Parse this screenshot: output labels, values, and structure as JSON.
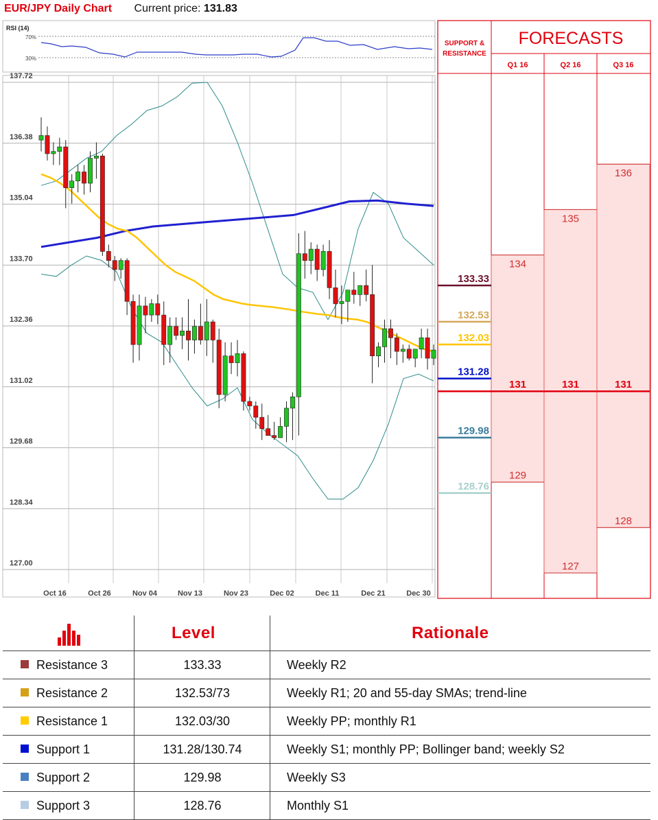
{
  "header": {
    "title": "EUR/JPY Daily Chart",
    "price_label": "Current price:",
    "price_value": "131.83"
  },
  "rsi": {
    "label": "RSI (14)",
    "levels": [
      "70%",
      "30%"
    ]
  },
  "chart_data": {
    "type": "candlestick",
    "title": "EUR/JPY Daily Chart",
    "y_ticks": [
      137.72,
      136.38,
      135.04,
      133.7,
      132.36,
      131.02,
      129.68,
      128.34,
      127.0
    ],
    "ylim": [
      127.0,
      137.72
    ],
    "x_ticks": [
      "Oct 16",
      "Oct 26",
      "Nov 04",
      "Nov 13",
      "Nov 23",
      "Dec 02",
      "Dec 11",
      "Dec 21",
      "Dec 30"
    ],
    "grid": true,
    "candles": [
      {
        "o": 136.45,
        "h": 136.95,
        "l": 136.2,
        "c": 136.55
      },
      {
        "o": 136.55,
        "h": 136.75,
        "l": 136.0,
        "c": 136.15
      },
      {
        "o": 136.15,
        "h": 136.4,
        "l": 135.9,
        "c": 136.2
      },
      {
        "o": 136.2,
        "h": 136.5,
        "l": 135.9,
        "c": 136.3
      },
      {
        "o": 136.3,
        "h": 136.45,
        "l": 134.95,
        "c": 135.4
      },
      {
        "o": 135.4,
        "h": 135.7,
        "l": 135.05,
        "c": 135.55
      },
      {
        "o": 135.55,
        "h": 135.9,
        "l": 135.3,
        "c": 135.75
      },
      {
        "o": 135.75,
        "h": 135.9,
        "l": 135.25,
        "c": 135.5
      },
      {
        "o": 135.5,
        "h": 136.2,
        "l": 135.3,
        "c": 136.05
      },
      {
        "o": 136.05,
        "h": 136.4,
        "l": 135.6,
        "c": 136.1
      },
      {
        "o": 136.1,
        "h": 136.15,
        "l": 133.9,
        "c": 134.0
      },
      {
        "o": 134.0,
        "h": 134.15,
        "l": 133.65,
        "c": 133.8
      },
      {
        "o": 133.8,
        "h": 133.9,
        "l": 133.35,
        "c": 133.6
      },
      {
        "o": 133.6,
        "h": 133.85,
        "l": 133.4,
        "c": 133.8
      },
      {
        "o": 133.8,
        "h": 133.85,
        "l": 132.6,
        "c": 132.9
      },
      {
        "o": 132.9,
        "h": 133.05,
        "l": 131.55,
        "c": 131.95
      },
      {
        "o": 131.95,
        "h": 133.05,
        "l": 131.6,
        "c": 132.8
      },
      {
        "o": 132.8,
        "h": 133.0,
        "l": 132.2,
        "c": 132.6
      },
      {
        "o": 132.6,
        "h": 132.95,
        "l": 132.45,
        "c": 132.85
      },
      {
        "o": 132.85,
        "h": 133.05,
        "l": 132.4,
        "c": 132.6
      },
      {
        "o": 132.6,
        "h": 132.9,
        "l": 131.5,
        "c": 131.95
      },
      {
        "o": 131.95,
        "h": 132.55,
        "l": 131.55,
        "c": 132.35
      },
      {
        "o": 132.35,
        "h": 132.55,
        "l": 132.05,
        "c": 132.15
      },
      {
        "o": 132.15,
        "h": 132.55,
        "l": 131.85,
        "c": 132.25
      },
      {
        "o": 132.25,
        "h": 132.95,
        "l": 131.6,
        "c": 132.05
      },
      {
        "o": 132.05,
        "h": 132.5,
        "l": 131.75,
        "c": 132.35
      },
      {
        "o": 132.35,
        "h": 132.85,
        "l": 131.95,
        "c": 132.05
      },
      {
        "o": 132.05,
        "h": 132.95,
        "l": 131.7,
        "c": 132.45
      },
      {
        "o": 132.45,
        "h": 132.5,
        "l": 131.55,
        "c": 132.05
      },
      {
        "o": 132.05,
        "h": 132.3,
        "l": 130.55,
        "c": 130.85
      },
      {
        "o": 130.85,
        "h": 132.0,
        "l": 130.7,
        "c": 131.7
      },
      {
        "o": 131.7,
        "h": 132.0,
        "l": 131.3,
        "c": 131.55
      },
      {
        "o": 131.55,
        "h": 132.05,
        "l": 131.25,
        "c": 131.75
      },
      {
        "o": 131.75,
        "h": 131.8,
        "l": 130.5,
        "c": 130.7
      },
      {
        "o": 130.7,
        "h": 130.8,
        "l": 130.5,
        "c": 130.6
      },
      {
        "o": 130.6,
        "h": 130.7,
        "l": 130.1,
        "c": 130.35
      },
      {
        "o": 130.35,
        "h": 130.65,
        "l": 129.85,
        "c": 130.1
      },
      {
        "o": 130.1,
        "h": 130.4,
        "l": 129.95,
        "c": 129.95
      },
      {
        "o": 129.95,
        "h": 130.25,
        "l": 129.85,
        "c": 129.9
      },
      {
        "o": 129.9,
        "h": 130.35,
        "l": 129.9,
        "c": 130.15
      },
      {
        "o": 130.15,
        "h": 130.7,
        "l": 129.8,
        "c": 130.55
      },
      {
        "o": 130.55,
        "h": 130.9,
        "l": 129.85,
        "c": 130.8
      },
      {
        "o": 130.8,
        "h": 134.4,
        "l": 129.95,
        "c": 133.95
      },
      {
        "o": 133.95,
        "h": 134.45,
        "l": 133.4,
        "c": 133.8
      },
      {
        "o": 133.8,
        "h": 134.2,
        "l": 133.5,
        "c": 134.05
      },
      {
        "o": 134.05,
        "h": 134.15,
        "l": 133.35,
        "c": 133.6
      },
      {
        "o": 133.6,
        "h": 134.15,
        "l": 133.45,
        "c": 134.0
      },
      {
        "o": 134.0,
        "h": 134.25,
        "l": 132.95,
        "c": 133.2
      },
      {
        "o": 133.2,
        "h": 133.6,
        "l": 132.55,
        "c": 132.85
      },
      {
        "o": 132.85,
        "h": 133.25,
        "l": 132.4,
        "c": 132.9
      },
      {
        "o": 132.9,
        "h": 133.15,
        "l": 132.45,
        "c": 133.15
      },
      {
        "o": 133.15,
        "h": 133.55,
        "l": 132.85,
        "c": 133.05
      },
      {
        "o": 133.05,
        "h": 133.25,
        "l": 132.8,
        "c": 133.25
      },
      {
        "o": 133.25,
        "h": 133.6,
        "l": 132.9,
        "c": 133.05
      },
      {
        "o": 133.05,
        "h": 133.7,
        "l": 131.1,
        "c": 131.7
      },
      {
        "o": 131.7,
        "h": 132.0,
        "l": 131.45,
        "c": 131.9
      },
      {
        "o": 131.9,
        "h": 132.5,
        "l": 131.55,
        "c": 132.3
      },
      {
        "o": 132.3,
        "h": 132.5,
        "l": 131.65,
        "c": 132.1
      },
      {
        "o": 132.1,
        "h": 132.2,
        "l": 131.5,
        "c": 131.8
      },
      {
        "o": 131.8,
        "h": 131.95,
        "l": 131.55,
        "c": 131.85
      },
      {
        "o": 131.85,
        "h": 131.95,
        "l": 131.6,
        "c": 131.65
      },
      {
        "o": 131.65,
        "h": 131.85,
        "l": 131.45,
        "c": 131.85
      },
      {
        "o": 131.85,
        "h": 132.3,
        "l": 131.65,
        "c": 132.1
      },
      {
        "o": 132.1,
        "h": 132.3,
        "l": 131.4,
        "c": 131.65
      },
      {
        "o": 131.65,
        "h": 131.95,
        "l": 131.5,
        "c": 131.83
      }
    ],
    "sma_yellow": [
      135.7,
      135.62,
      135.5,
      135.35,
      135.15,
      134.95,
      134.75,
      134.6,
      134.5,
      134.45,
      134.3,
      134.1,
      133.9,
      133.7,
      133.55,
      133.45,
      133.35,
      133.2,
      133.05,
      132.95,
      132.9,
      132.85,
      132.82,
      132.8,
      132.78,
      132.75,
      132.72,
      132.68,
      132.65,
      132.62,
      132.6,
      132.55,
      132.52,
      132.5,
      132.45,
      132.35,
      132.25,
      132.15,
      132.05,
      131.95,
      131.85,
      131.8
    ],
    "sma_blue": [
      134.1,
      134.2,
      134.3,
      134.45,
      134.55,
      134.6,
      134.65,
      134.7,
      134.75,
      134.8,
      134.95,
      135.1,
      135.12,
      135.05,
      135.0
    ],
    "bb_upper": [
      135.45,
      135.55,
      135.8,
      136.05,
      136.2,
      136.55,
      136.8,
      137.1,
      137.2,
      137.4,
      137.7,
      137.72,
      137.2,
      136.4,
      135.5,
      134.5,
      133.5,
      133.2,
      133.1,
      132.5,
      133.1,
      134.5,
      135.3,
      135.05,
      134.3,
      134.0,
      133.7
    ],
    "bb_lower": [
      133.5,
      133.45,
      133.7,
      133.9,
      133.8,
      133.55,
      132.75,
      132.2,
      132.0,
      131.5,
      131.0,
      130.6,
      130.75,
      131.0,
      130.3,
      130.0,
      129.75,
      129.5,
      129.0,
      128.55,
      128.55,
      128.8,
      129.4,
      130.2,
      131.2,
      131.3,
      131.15
    ],
    "support_resistance": [
      {
        "value": "133.33",
        "label": "133.33",
        "color": "#6b0f2a",
        "label_color": "#6b0f2a"
      },
      {
        "value": "132.53",
        "label": "132.53",
        "color": "#d4a85a",
        "label_color": "#d4a85a"
      },
      {
        "value": "132.03",
        "label": "132.03",
        "color": "#ffc400",
        "label_color": "#ffc400"
      },
      {
        "value": "131.28",
        "label": "131.28",
        "color": "#0010c8",
        "label_color": "#0010c8"
      },
      {
        "value": "129.98",
        "label": "129.98",
        "color": "#3a7c9c",
        "label_color": "#3a7c9c"
      },
      {
        "value": "128.76",
        "label": "128.76",
        "color": "#a8d0cc",
        "label_color": "#a8d0cc"
      }
    ],
    "forecasts": {
      "title": "FORECASTS",
      "sr_header": [
        "SUPPORT &",
        "RESISTANCE"
      ],
      "quarters": [
        {
          "label": "Q1 16",
          "high": "134",
          "mid": "131",
          "low": "129"
        },
        {
          "label": "Q2 16",
          "high": "135",
          "mid": "131",
          "low": "127"
        },
        {
          "label": "Q3 16",
          "high": "136",
          "mid": "131",
          "low": "128"
        }
      ]
    }
  },
  "table": {
    "headers": {
      "level": "Level",
      "rationale": "Rationale"
    },
    "rows": [
      {
        "name": "Resistance 3",
        "level": "133.33",
        "rationale": "Weekly R2",
        "color": "#9b3a3a"
      },
      {
        "name": "Resistance 2",
        "level": "132.53/73",
        "rationale": "Weekly R1; 20 and 55-day SMAs; trend-line",
        "color": "#d4a017"
      },
      {
        "name": "Resistance 1",
        "level": "132.03/30",
        "rationale": "Weekly PP; monthly R1",
        "color": "#ffcc00"
      },
      {
        "name": "Support 1",
        "level": "131.28/130.74",
        "rationale": "Weekly S1; monthly PP; Bollinger band; weekly S2",
        "color": "#0010d0"
      },
      {
        "name": "Support 2",
        "level": "129.98",
        "rationale": "Weekly S3",
        "color": "#4a80c0"
      },
      {
        "name": "Support 3",
        "level": "128.76",
        "rationale": "Monthly S1",
        "color": "#b8cce4"
      }
    ]
  }
}
